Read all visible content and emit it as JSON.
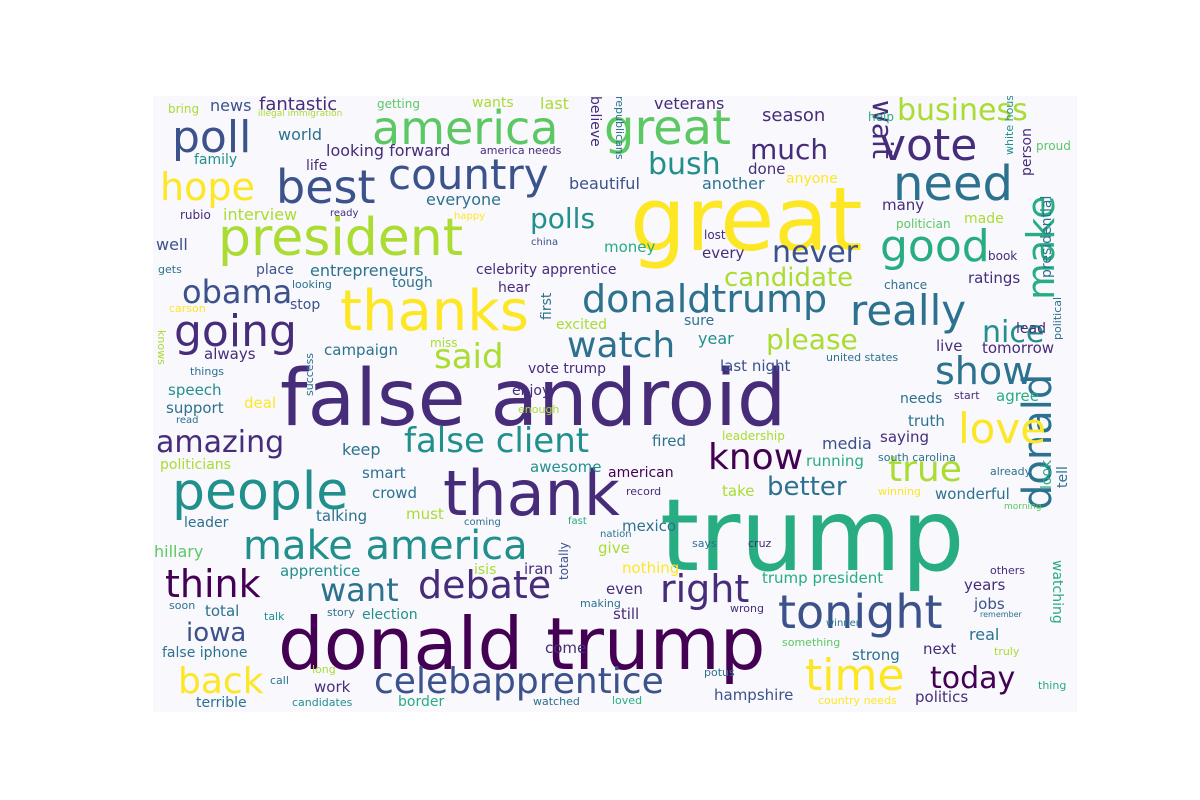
{
  "colors": {
    "background": "#f8f8fd",
    "palette": [
      "#440154",
      "#472c7a",
      "#3b528b",
      "#2c728e",
      "#21908d",
      "#27ad81",
      "#5cc863",
      "#aadc32",
      "#fde725"
    ]
  },
  "words": [
    {
      "text": "false android",
      "color": "#472c7a"
    },
    {
      "text": "trump",
      "color": "#27ad81"
    },
    {
      "text": "donald trump",
      "color": "#440154"
    },
    {
      "text": "great",
      "color": "#fde725"
    },
    {
      "text": "thank",
      "color": "#472c7a"
    },
    {
      "text": "president",
      "color": "#aadc32"
    },
    {
      "text": "people",
      "color": "#21908d"
    },
    {
      "text": "thanks",
      "color": "#fde725"
    },
    {
      "text": "america",
      "color": "#5cc863"
    },
    {
      "text": "great",
      "color": "#5cc863"
    },
    {
      "text": "make america",
      "color": "#21908d"
    },
    {
      "text": "donaldtrump",
      "color": "#2c728e"
    },
    {
      "text": "country",
      "color": "#3b528b"
    },
    {
      "text": "need",
      "color": "#2c728e"
    },
    {
      "text": "best",
      "color": "#3b528b"
    },
    {
      "text": "going",
      "color": "#472c7a"
    },
    {
      "text": "tonight",
      "color": "#3b528b"
    },
    {
      "text": "vote",
      "color": "#472c7a"
    },
    {
      "text": "good",
      "color": "#27ad81"
    },
    {
      "text": "time",
      "color": "#fde725"
    },
    {
      "text": "really",
      "color": "#2c728e"
    },
    {
      "text": "celebapprentice",
      "color": "#3b528b"
    },
    {
      "text": "false client",
      "color": "#21908d"
    },
    {
      "text": "poll",
      "color": "#3b528b"
    },
    {
      "text": "donald",
      "color": "#2c728e"
    },
    {
      "text": "hope",
      "color": "#fde725"
    },
    {
      "text": "think",
      "color": "#440154"
    },
    {
      "text": "debate",
      "color": "#472c7a"
    },
    {
      "text": "right",
      "color": "#472c7a"
    },
    {
      "text": "love",
      "color": "#fde725"
    },
    {
      "text": "watch",
      "color": "#2c728e"
    },
    {
      "text": "want",
      "color": "#2c728e"
    },
    {
      "text": "obama",
      "color": "#3b528b"
    },
    {
      "text": "back",
      "color": "#fde725"
    },
    {
      "text": "know",
      "color": "#440154"
    },
    {
      "text": "true",
      "color": "#aadc32"
    },
    {
      "text": "amazing",
      "color": "#472c7a"
    },
    {
      "text": "show",
      "color": "#2c728e"
    },
    {
      "text": "said",
      "color": "#aadc32"
    },
    {
      "text": "never",
      "color": "#3b528b"
    },
    {
      "text": "make",
      "color": "#27ad81"
    },
    {
      "text": "business",
      "color": "#aadc32"
    },
    {
      "text": "today",
      "color": "#440154"
    },
    {
      "text": "bush",
      "color": "#21908d"
    },
    {
      "text": "much",
      "color": "#472c7a"
    },
    {
      "text": "polls",
      "color": "#21908d"
    },
    {
      "text": "please",
      "color": "#aadc32"
    },
    {
      "text": "better",
      "color": "#2c728e"
    },
    {
      "text": "candidate",
      "color": "#aadc32"
    },
    {
      "text": "wait",
      "color": "#472c7a"
    },
    {
      "text": "nice",
      "color": "#21908d"
    },
    {
      "text": "iowa",
      "color": "#3b528b"
    },
    {
      "text": "entrepreneurs",
      "color": "#2c728e"
    },
    {
      "text": "fantastic",
      "color": "#472c7a"
    },
    {
      "text": "news",
      "color": "#3b528b"
    },
    {
      "text": "world",
      "color": "#2c728e"
    },
    {
      "text": "family",
      "color": "#21908d"
    },
    {
      "text": "life",
      "color": "#472c7a"
    },
    {
      "text": "looking forward",
      "color": "#472c7a"
    },
    {
      "text": "interview",
      "color": "#aadc32"
    },
    {
      "text": "everyone",
      "color": "#2c728e"
    },
    {
      "text": "beautiful",
      "color": "#3b528b"
    },
    {
      "text": "another",
      "color": "#2c728e"
    },
    {
      "text": "done",
      "color": "#472c7a"
    },
    {
      "text": "anyone",
      "color": "#fde725"
    },
    {
      "text": "season",
      "color": "#472c7a"
    },
    {
      "text": "veterans",
      "color": "#472c7a"
    },
    {
      "text": "last",
      "color": "#aadc32"
    },
    {
      "text": "wants",
      "color": "#aadc32"
    },
    {
      "text": "getting",
      "color": "#5cc863"
    },
    {
      "text": "bring",
      "color": "#aadc32"
    },
    {
      "text": "illegal immigration",
      "color": "#aadc32"
    },
    {
      "text": "america needs",
      "color": "#472c7a"
    },
    {
      "text": "believe",
      "color": "#472c7a"
    },
    {
      "text": "republicans",
      "color": "#2c728e"
    },
    {
      "text": "help",
      "color": "#27ad81"
    },
    {
      "text": "white house",
      "color": "#21908d"
    },
    {
      "text": "person",
      "color": "#472c7a"
    },
    {
      "text": "proud",
      "color": "#5cc863"
    },
    {
      "text": "presidential",
      "color": "#2c728e"
    },
    {
      "text": "politician",
      "color": "#5cc863"
    },
    {
      "text": "made",
      "color": "#aadc32"
    },
    {
      "text": "many",
      "color": "#472c7a"
    },
    {
      "text": "lost",
      "color": "#472c7a"
    },
    {
      "text": "every",
      "color": "#472c7a"
    },
    {
      "text": "book",
      "color": "#472c7a"
    },
    {
      "text": "chance",
      "color": "#2c728e"
    },
    {
      "text": "ratings",
      "color": "#472c7a"
    },
    {
      "text": "lead",
      "color": "#472c7a"
    },
    {
      "text": "rubio",
      "color": "#472c7a"
    },
    {
      "text": "ready",
      "color": "#472c7a"
    },
    {
      "text": "happy",
      "color": "#fde725"
    },
    {
      "text": "china",
      "color": "#3b528b"
    },
    {
      "text": "money",
      "color": "#27ad81"
    },
    {
      "text": "well",
      "color": "#3b528b"
    },
    {
      "text": "gets",
      "color": "#2c728e"
    },
    {
      "text": "place",
      "color": "#3b528b"
    },
    {
      "text": "celebrity apprentice",
      "color": "#472c7a"
    },
    {
      "text": "looking",
      "color": "#2c728e"
    },
    {
      "text": "carson",
      "color": "#fde725"
    },
    {
      "text": "tough",
      "color": "#2c728e"
    },
    {
      "text": "hear",
      "color": "#472c7a"
    },
    {
      "text": "stop",
      "color": "#3b528b"
    },
    {
      "text": "sure",
      "color": "#2c728e"
    },
    {
      "text": "excited",
      "color": "#aadc32"
    },
    {
      "text": "first",
      "color": "#2c728e"
    },
    {
      "text": "miss",
      "color": "#aadc32"
    },
    {
      "text": "always",
      "color": "#472c7a"
    },
    {
      "text": "campaign",
      "color": "#2c728e"
    },
    {
      "text": "year",
      "color": "#21908d"
    },
    {
      "text": "last night",
      "color": "#3b528b"
    },
    {
      "text": "united states",
      "color": "#2c728e"
    },
    {
      "text": "live",
      "color": "#472c7a"
    },
    {
      "text": "tomorrow",
      "color": "#472c7a"
    },
    {
      "text": "political",
      "color": "#2c728e"
    },
    {
      "text": "knows",
      "color": "#aadc32"
    },
    {
      "text": "things",
      "color": "#2c728e"
    },
    {
      "text": "vote trump",
      "color": "#472c7a"
    },
    {
      "text": "speech",
      "color": "#21908d"
    },
    {
      "text": "enjoy",
      "color": "#472c7a"
    },
    {
      "text": "enough",
      "color": "#aadc32"
    },
    {
      "text": "support",
      "color": "#2c728e"
    },
    {
      "text": "deal",
      "color": "#fde725"
    },
    {
      "text": "read",
      "color": "#2c728e"
    },
    {
      "text": "success",
      "color": "#2c728e"
    },
    {
      "text": "start",
      "color": "#472c7a"
    },
    {
      "text": "needs",
      "color": "#2c728e"
    },
    {
      "text": "agree",
      "color": "#27ad81"
    },
    {
      "text": "truth",
      "color": "#2c728e"
    },
    {
      "text": "saying",
      "color": "#472c7a"
    },
    {
      "text": "media",
      "color": "#3b528b"
    },
    {
      "text": "leadership",
      "color": "#aadc32"
    },
    {
      "text": "fired",
      "color": "#2c728e"
    },
    {
      "text": "keep",
      "color": "#2c728e"
    },
    {
      "text": "politicians",
      "color": "#aadc32"
    },
    {
      "text": "smart",
      "color": "#2c728e"
    },
    {
      "text": "awesome",
      "color": "#21908d"
    },
    {
      "text": "south carolina",
      "color": "#2c728e"
    },
    {
      "text": "american",
      "color": "#440154"
    },
    {
      "text": "running",
      "color": "#27ad81"
    },
    {
      "text": "look",
      "color": "#27ad81"
    },
    {
      "text": "tell",
      "color": "#2c728e"
    },
    {
      "text": "already",
      "color": "#2c728e"
    },
    {
      "text": "crowd",
      "color": "#2c728e"
    },
    {
      "text": "record",
      "color": "#472c7a"
    },
    {
      "text": "take",
      "color": "#aadc32"
    },
    {
      "text": "winning",
      "color": "#fde725"
    },
    {
      "text": "wonderful",
      "color": "#2c728e"
    },
    {
      "text": "morning",
      "color": "#5cc863"
    },
    {
      "text": "talking",
      "color": "#2c728e"
    },
    {
      "text": "must",
      "color": "#aadc32"
    },
    {
      "text": "leader",
      "color": "#2c728e"
    },
    {
      "text": "coming",
      "color": "#2c728e"
    },
    {
      "text": "fast",
      "color": "#27ad81"
    },
    {
      "text": "nation",
      "color": "#2c728e"
    },
    {
      "text": "mexico",
      "color": "#2c728e"
    },
    {
      "text": "hillary",
      "color": "#5cc863"
    },
    {
      "text": "give",
      "color": "#aadc32"
    },
    {
      "text": "says",
      "color": "#2c728e"
    },
    {
      "text": "cruz",
      "color": "#472c7a"
    },
    {
      "text": "isis",
      "color": "#aadc32"
    },
    {
      "text": "iran",
      "color": "#472c7a"
    },
    {
      "text": "nothing",
      "color": "#fde725"
    },
    {
      "text": "trump president",
      "color": "#27ad81"
    },
    {
      "text": "others",
      "color": "#472c7a"
    },
    {
      "text": "apprentice",
      "color": "#21908d"
    },
    {
      "text": "totally",
      "color": "#3b528b"
    },
    {
      "text": "even",
      "color": "#472c7a"
    },
    {
      "text": "years",
      "color": "#472c7a"
    },
    {
      "text": "watching",
      "color": "#27ad81"
    },
    {
      "text": "soon",
      "color": "#2c728e"
    },
    {
      "text": "total",
      "color": "#2c728e"
    },
    {
      "text": "talk",
      "color": "#21908d"
    },
    {
      "text": "story",
      "color": "#2c728e"
    },
    {
      "text": "election",
      "color": "#21908d"
    },
    {
      "text": "making",
      "color": "#2c728e"
    },
    {
      "text": "still",
      "color": "#472c7a"
    },
    {
      "text": "wrong",
      "color": "#472c7a"
    },
    {
      "text": "winner",
      "color": "#2c728e"
    },
    {
      "text": "jobs",
      "color": "#3b528b"
    },
    {
      "text": "remember",
      "color": "#2c728e"
    },
    {
      "text": "real",
      "color": "#2c728e"
    },
    {
      "text": "false iphone",
      "color": "#2c728e"
    },
    {
      "text": "long",
      "color": "#aadc32"
    },
    {
      "text": "come",
      "color": "#472c7a"
    },
    {
      "text": "something",
      "color": "#5cc863"
    },
    {
      "text": "truly",
      "color": "#aadc32"
    },
    {
      "text": "strong",
      "color": "#2c728e"
    },
    {
      "text": "next",
      "color": "#472c7a"
    },
    {
      "text": "call",
      "color": "#2c728e"
    },
    {
      "text": "work",
      "color": "#472c7a"
    },
    {
      "text": "potus",
      "color": "#2c728e"
    },
    {
      "text": "hampshire",
      "color": "#3b528b"
    },
    {
      "text": "politics",
      "color": "#472c7a"
    },
    {
      "text": "thing",
      "color": "#27ad81"
    },
    {
      "text": "terrible",
      "color": "#2c728e"
    },
    {
      "text": "candidates",
      "color": "#21908d"
    },
    {
      "text": "border",
      "color": "#27ad81"
    },
    {
      "text": "watched",
      "color": "#2c728e"
    },
    {
      "text": "loved",
      "color": "#27ad81"
    },
    {
      "text": "country needs",
      "color": "#fde725"
    }
  ]
}
